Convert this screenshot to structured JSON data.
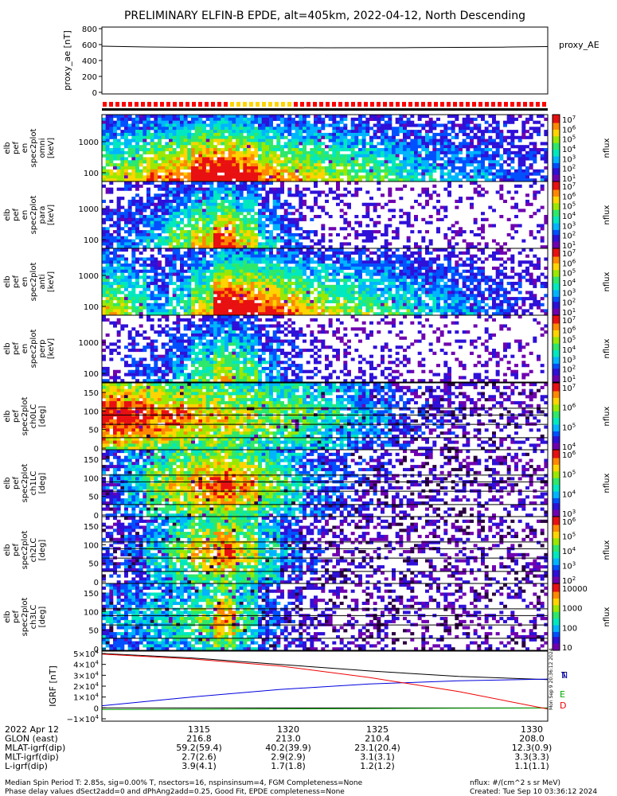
{
  "title": "PRELIMINARY ELFIN-B EPDE, alt=405km, 2022-04-12, North Descending",
  "footer": {
    "left_line1": "Median Spin Period T: 2.85s, sig=0.00% T, nsectors=16, nspinsinsum=4, FGM Completeness=None",
    "left_line2": "Phase delay values dSect2add=0 and dPhAng2add=0.25, Good Fit, EPDE completeness=None",
    "right_line1": "nflux: #/(cm^2 s sr MeV)",
    "right_line2": "Created: Tue Sep 10 03:36:12 2024"
  },
  "side_stamp": "Mon Sep 9 20:36:12 2024",
  "colors": {
    "spec_ramp": [
      "#6f00b0",
      "#2e10d8",
      "#0050ff",
      "#00b4ff",
      "#00e8c0",
      "#2ee86a",
      "#9ae800",
      "#ffd400",
      "#ff8800",
      "#e81010"
    ],
    "flag_red": "#ff0000",
    "flag_yellow": "#ffd500",
    "igrf_n": "#0000dd",
    "igrf_e": "#00aa00",
    "igrf_d": "#ee0000",
    "igrf_t": "#000000"
  },
  "chart_data": [
    {
      "type": "line",
      "panel": "proxy_ae",
      "ylabel": "proxy_ae [nT]",
      "legend": "proxy_AE",
      "ylim": [
        0,
        800
      ],
      "yticks": [
        "800",
        "600",
        "400",
        "200",
        "0"
      ],
      "x": [
        0,
        0.1,
        0.2,
        0.35,
        0.5,
        0.7,
        0.9,
        1.0
      ],
      "values": [
        580,
        570,
        565,
        562,
        560,
        562,
        568,
        575
      ]
    },
    {
      "type": "heatmap",
      "panel": "spec2plot en omni",
      "ylabel": "elb pef en spec2plot omni [keV]",
      "yticks": [
        "1000",
        "100"
      ],
      "colorbar": {
        "label": "nflux",
        "ticks": [
          "10^7",
          "10^6",
          "10^5",
          "10^4",
          "10^3",
          "10^2",
          "10^1"
        ]
      },
      "profile": [
        0.55,
        0.6,
        0.7,
        0.75,
        0.9,
        0.95,
        0.85,
        0.7,
        0.65,
        0.6,
        0.55,
        0.5,
        0.45,
        0.4,
        0.35,
        0.3,
        0.28,
        0.25,
        0.2,
        0.15
      ]
    },
    {
      "type": "heatmap",
      "panel": "spec2plot en para",
      "ylabel": "elb pef en spec2plot para [keV]",
      "yticks": [
        "1000",
        "100"
      ],
      "colorbar": {
        "label": "nflux",
        "ticks": [
          "10^7",
          "10^6",
          "10^5",
          "10^4",
          "10^3",
          "10^2",
          "10^1"
        ]
      },
      "profile": [
        0.2,
        0.25,
        0.35,
        0.5,
        0.65,
        0.8,
        0.6,
        0.35,
        0.2,
        0.1,
        0.05,
        0.05,
        0.05,
        0.03,
        0.02,
        0.02,
        0.02,
        0.01,
        0.01,
        0.01
      ]
    },
    {
      "type": "heatmap",
      "panel": "spec2plot en anti",
      "ylabel": "elb pef en spec2plot anti [keV]",
      "yticks": [
        "1000",
        "100"
      ],
      "colorbar": {
        "label": "nflux",
        "ticks": [
          "10^7",
          "10^6",
          "10^5",
          "10^4",
          "10^3",
          "10^2",
          "10^1"
        ]
      },
      "profile": [
        0.6,
        0.5,
        0.3,
        0.4,
        0.6,
        0.95,
        0.9,
        0.8,
        0.7,
        0.6,
        0.55,
        0.5,
        0.45,
        0.4,
        0.35,
        0.3,
        0.25,
        0.2,
        0.15,
        0.1
      ]
    },
    {
      "type": "heatmap",
      "panel": "spec2plot en perp",
      "ylabel": "elb pef en spec2plot perp [keV]",
      "yticks": [
        "1000",
        "100"
      ],
      "colorbar": {
        "label": "nflux",
        "ticks": [
          "10^7",
          "10^6",
          "10^5",
          "10^4",
          "10^3",
          "10^2",
          "10^1"
        ]
      },
      "profile": [
        0.1,
        0.15,
        0.2,
        0.3,
        0.45,
        0.6,
        0.5,
        0.3,
        0.15,
        0.08,
        0.05,
        0.05,
        0.04,
        0.03,
        0.02,
        0.02,
        0.02,
        0.01,
        0.01,
        0.01
      ]
    },
    {
      "type": "heatmap",
      "panel": "spec2plot ch0LC",
      "ylabel": "elb pef spec2plot ch0LC [deg]",
      "yticks": [
        "150",
        "100",
        "50",
        "0"
      ],
      "colorbar": {
        "label": "nflux",
        "ticks": [
          "10^7",
          "10^6",
          "10^5",
          "10^4"
        ]
      },
      "profile": [
        0.95,
        0.9,
        0.85,
        0.8,
        0.75,
        0.7,
        0.65,
        0.6,
        0.55,
        0.5,
        0.45,
        0.35,
        0.25,
        0.15,
        0.1,
        0.08,
        0.05,
        0.03,
        0.02,
        0.02
      ]
    },
    {
      "type": "heatmap",
      "panel": "spec2plot ch1LC",
      "ylabel": "elb pef spec2plot ch1LC [deg]",
      "yticks": [
        "150",
        "100",
        "50",
        "0"
      ],
      "colorbar": {
        "label": "nflux",
        "ticks": [
          "10^6",
          "10^5",
          "10^4",
          "10^3"
        ]
      },
      "profile": [
        0.2,
        0.4,
        0.6,
        0.7,
        0.8,
        0.85,
        0.75,
        0.6,
        0.45,
        0.3,
        0.2,
        0.12,
        0.08,
        0.05,
        0.03,
        0.02,
        0.02,
        0.01,
        0.01,
        0.01
      ]
    },
    {
      "type": "heatmap",
      "panel": "spec2plot ch2LC",
      "ylabel": "elb pef spec2plot ch2LC [deg]",
      "yticks": [
        "150",
        "100",
        "50",
        "0"
      ],
      "colorbar": {
        "label": "nflux",
        "ticks": [
          "10^6",
          "10^5",
          "10^4",
          "10^3",
          "10^2"
        ]
      },
      "profile": [
        0.1,
        0.2,
        0.4,
        0.55,
        0.7,
        0.8,
        0.65,
        0.45,
        0.25,
        0.12,
        0.06,
        0.04,
        0.03,
        0.02,
        0.02,
        0.01,
        0.01,
        0.01,
        0.01,
        0.01
      ]
    },
    {
      "type": "heatmap",
      "panel": "spec2plot ch3LC",
      "ylabel": "elb pef spec2plot ch3LC [deg]",
      "yticks": [
        "150",
        "100",
        "50",
        "0"
      ],
      "colorbar": {
        "label": "nflux",
        "ticks": [
          "10000",
          "1000",
          "100",
          "10"
        ]
      },
      "profile": [
        0.3,
        0.35,
        0.4,
        0.45,
        0.55,
        0.75,
        0.5,
        0.25,
        0.1,
        0.05,
        0.03,
        0.02,
        0.02,
        0.01,
        0.01,
        0.01,
        0.01,
        0.01,
        0.01,
        0.01
      ]
    },
    {
      "type": "line",
      "panel": "IGRF",
      "ylabel": "IGRF [nT]",
      "yticks": [
        "5×10^4",
        "4×10^4",
        "3×10^4",
        "2×10^4",
        "1×10^4",
        "0",
        "−1×10^4"
      ],
      "ylim": [
        -10000,
        50000
      ],
      "x": [
        0,
        0.2,
        0.4,
        0.6,
        0.8,
        1.0
      ],
      "series": [
        {
          "name": "T",
          "values": [
            50000,
            46000,
            40000,
            34000,
            29000,
            26000
          ]
        },
        {
          "name": "N",
          "values": [
            2000,
            10000,
            17000,
            22000,
            25000,
            26500
          ]
        },
        {
          "name": "E",
          "values": [
            -1500,
            -1200,
            -900,
            -600,
            -300,
            -100
          ]
        },
        {
          "name": "D",
          "values": [
            49500,
            45000,
            38500,
            28000,
            15000,
            -1000
          ]
        }
      ]
    }
  ],
  "x_axis": {
    "rows": [
      {
        "label": "2022 Apr 12",
        "values": [
          "1315",
          "1320",
          "1325",
          "1330"
        ]
      },
      {
        "label": "GLON (east)",
        "values": [
          "216.8",
          "213.0",
          "210.4",
          "208.0"
        ]
      },
      {
        "label": "MLAT-igrf(dip)",
        "values": [
          "59.2(59.4)",
          "40.2(39.9)",
          "23.1(20.4)",
          "12.3(0.9)"
        ]
      },
      {
        "label": "MLT-igrf(dip)",
        "values": [
          "2.7(2.6)",
          "2.9(2.9)",
          "3.1(3.1)",
          "3.3(3.3)"
        ]
      },
      {
        "label": "L-igrf(dip)",
        "values": [
          "3.9(4.1)",
          "1.7(1.8)",
          "1.2(1.2)",
          "1.1(1.1)"
        ]
      }
    ]
  }
}
